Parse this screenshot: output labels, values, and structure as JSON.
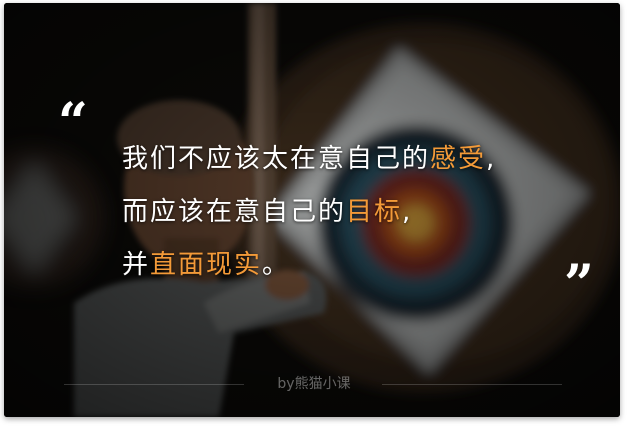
{
  "quote": {
    "open_mark": "“",
    "close_mark": "”",
    "line1": {
      "text": "我们不应该太在意自己的",
      "highlight": "感受",
      "end": ","
    },
    "line2": {
      "text": "而应该在意自己的",
      "highlight": "目标",
      "end": ","
    },
    "line3": {
      "text": "并",
      "highlight": "直面现实",
      "end": "。"
    }
  },
  "credit": "by熊猫小课",
  "colors": {
    "highlight": "#f39a38",
    "text": "#ffffff",
    "background": "#0d0c0b"
  },
  "image": {
    "subject": "archer-aiming-at-target"
  }
}
